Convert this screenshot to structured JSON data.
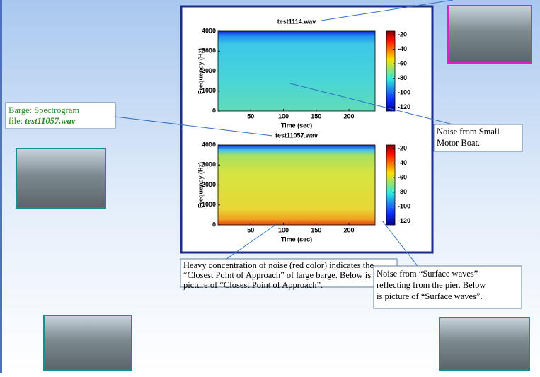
{
  "panels": [
    {
      "title": "test1114.wav",
      "y_label": "Frequency (Hz)",
      "x_label": "Time (sec)",
      "xlim": [
        0,
        240
      ],
      "xticks": [
        50,
        100,
        150,
        200
      ],
      "ylim": [
        0,
        4000
      ],
      "yticks": [
        0,
        1000,
        2000,
        3000,
        4000
      ],
      "clim": [
        -125,
        -15
      ],
      "cticks": [
        -20,
        -40,
        -60,
        -80,
        -100,
        -120
      ]
    },
    {
      "title": "test11057.wav",
      "y_label": "Frequency (Hz)",
      "x_label": "Time (sec)",
      "xlim": [
        0,
        240
      ],
      "xticks": [
        50,
        100,
        150,
        200
      ],
      "ylim": [
        0,
        4000
      ],
      "yticks": [
        0,
        1000,
        2000,
        3000,
        4000
      ],
      "clim": [
        -125,
        -15
      ],
      "cticks": [
        -20,
        -40,
        -60,
        -80,
        -100,
        -120
      ]
    }
  ],
  "callouts": {
    "barge": {
      "line1": "Barge: Spectrogram",
      "prefix": "file:",
      "file": "test11057.wav"
    },
    "motor_boat": [
      "Noise from Small",
      "Motor Boat."
    ],
    "closest_approach": [
      "Heavy concentration of noise (red color) indicates the",
      "“Closest Point of Approach” of large barge.  Below is",
      "picture of “Closest Point of Approach”."
    ],
    "surface_waves": [
      "Noise from “Surface waves”",
      "reflecting from the pier. Below",
      "is picture of “Surface waves”."
    ]
  }
}
